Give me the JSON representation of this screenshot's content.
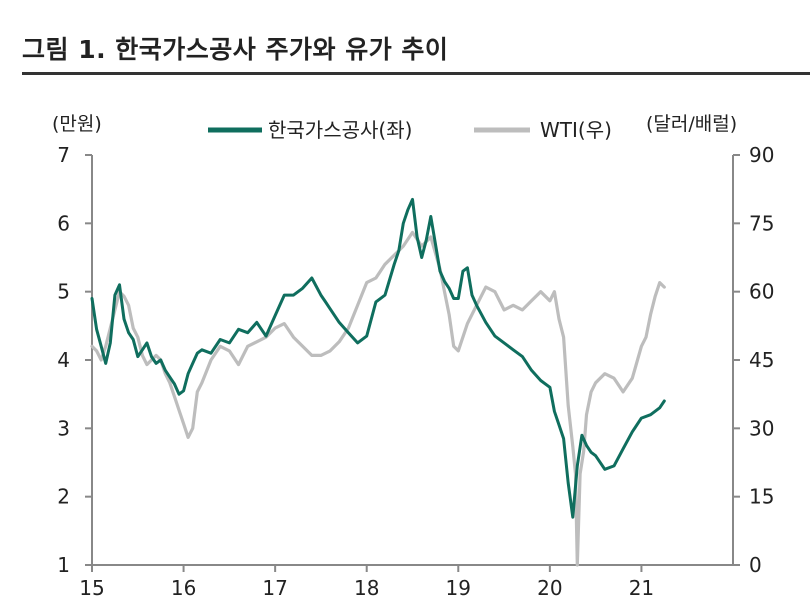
{
  "title": "그림 1. 한국가스공사 주가와 유가 추이",
  "chart_data": {
    "type": "line",
    "title": "그림 1. 한국가스공사 주가와 유가 추이",
    "left_unit": "(만원)",
    "right_unit": "(달러/배럴)",
    "x_ticks": [
      "15",
      "16",
      "17",
      "18",
      "19",
      "20",
      "21"
    ],
    "y_left_ticks": [
      "1",
      "2",
      "3",
      "4",
      "5",
      "6",
      "7"
    ],
    "y_right_ticks": [
      "0",
      "15",
      "30",
      "45",
      "60",
      "75",
      "90"
    ],
    "xlim": [
      2015.0,
      2022.0
    ],
    "ylim_left": [
      1,
      7
    ],
    "ylim_right": [
      0,
      90
    ],
    "legend_position": "top",
    "series": [
      {
        "name": "한국가스공사(좌)",
        "axis": "left",
        "color": "#0f6e5e",
        "x": [
          2015.0,
          2015.05,
          2015.1,
          2015.15,
          2015.2,
          2015.25,
          2015.3,
          2015.35,
          2015.4,
          2015.45,
          2015.5,
          2015.55,
          2015.6,
          2015.65,
          2015.7,
          2015.75,
          2015.8,
          2015.85,
          2015.9,
          2015.95,
          2016.0,
          2016.05,
          2016.1,
          2016.15,
          2016.2,
          2016.3,
          2016.4,
          2016.5,
          2016.6,
          2016.7,
          2016.8,
          2016.9,
          2017.0,
          2017.1,
          2017.2,
          2017.3,
          2017.4,
          2017.5,
          2017.55,
          2017.6,
          2017.7,
          2017.8,
          2017.9,
          2018.0,
          2018.1,
          2018.2,
          2018.3,
          2018.35,
          2018.4,
          2018.45,
          2018.5,
          2018.55,
          2018.6,
          2018.65,
          2018.7,
          2018.75,
          2018.8,
          2018.85,
          2018.9,
          2018.95,
          2019.0,
          2019.05,
          2019.1,
          2019.15,
          2019.2,
          2019.3,
          2019.4,
          2019.5,
          2019.6,
          2019.7,
          2019.8,
          2019.9,
          2020.0,
          2020.05,
          2020.1,
          2020.15,
          2020.2,
          2020.25,
          2020.3,
          2020.35,
          2020.4,
          2020.45,
          2020.5,
          2020.6,
          2020.7,
          2020.8,
          2020.9,
          2021.0,
          2021.1,
          2021.2,
          2021.25
        ],
        "values": [
          4.9,
          4.45,
          4.2,
          3.95,
          4.25,
          4.95,
          5.1,
          4.6,
          4.4,
          4.3,
          4.05,
          4.15,
          4.25,
          4.05,
          3.95,
          4.0,
          3.85,
          3.75,
          3.65,
          3.5,
          3.55,
          3.8,
          3.95,
          4.1,
          4.15,
          4.1,
          4.3,
          4.25,
          4.45,
          4.4,
          4.55,
          4.35,
          4.65,
          4.95,
          4.95,
          5.05,
          5.2,
          4.95,
          4.85,
          4.75,
          4.55,
          4.4,
          4.25,
          4.35,
          4.85,
          4.95,
          5.4,
          5.6,
          6.0,
          6.2,
          6.35,
          5.8,
          5.5,
          5.75,
          6.1,
          5.7,
          5.3,
          5.15,
          5.05,
          4.9,
          4.9,
          5.3,
          5.35,
          4.95,
          4.8,
          4.55,
          4.35,
          4.25,
          4.15,
          4.05,
          3.85,
          3.7,
          3.6,
          3.25,
          3.05,
          2.85,
          2.2,
          1.7,
          2.45,
          2.9,
          2.75,
          2.65,
          2.6,
          2.4,
          2.45,
          2.7,
          2.95,
          3.15,
          3.2,
          3.3,
          3.4
        ]
      },
      {
        "name": "WTI(우)",
        "axis": "right",
        "color": "#bdbdbd",
        "x": [
          2015.0,
          2015.05,
          2015.1,
          2015.15,
          2015.2,
          2015.25,
          2015.3,
          2015.35,
          2015.4,
          2015.45,
          2015.5,
          2015.55,
          2015.6,
          2015.65,
          2015.7,
          2015.75,
          2015.8,
          2015.85,
          2015.9,
          2015.95,
          2016.0,
          2016.05,
          2016.1,
          2016.15,
          2016.2,
          2016.3,
          2016.4,
          2016.5,
          2016.6,
          2016.7,
          2016.8,
          2016.9,
          2017.0,
          2017.1,
          2017.2,
          2017.3,
          2017.4,
          2017.5,
          2017.6,
          2017.7,
          2017.8,
          2017.9,
          2018.0,
          2018.1,
          2018.2,
          2018.3,
          2018.4,
          2018.5,
          2018.6,
          2018.7,
          2018.8,
          2018.85,
          2018.9,
          2018.95,
          2019.0,
          2019.1,
          2019.2,
          2019.3,
          2019.4,
          2019.5,
          2019.6,
          2019.7,
          2019.8,
          2019.9,
          2020.0,
          2020.05,
          2020.1,
          2020.15,
          2020.2,
          2020.25,
          2020.28,
          2020.3,
          2020.33,
          2020.37,
          2020.4,
          2020.45,
          2020.5,
          2020.6,
          2020.7,
          2020.8,
          2020.9,
          2021.0,
          2021.05,
          2021.1,
          2021.15,
          2021.2,
          2021.25
        ],
        "values": [
          48,
          47,
          45,
          48,
          52,
          56,
          60,
          59,
          57,
          52,
          50,
          46,
          44,
          45,
          46,
          45,
          42,
          40,
          37,
          34,
          31,
          28,
          30,
          38,
          40,
          45,
          48,
          47,
          44,
          48,
          49,
          50,
          52,
          53,
          50,
          48,
          46,
          46,
          47,
          49,
          52,
          57,
          62,
          63,
          66,
          68,
          70,
          73,
          70,
          72,
          65,
          60,
          55,
          48,
          47,
          53,
          57,
          61,
          60,
          56,
          57,
          56,
          58,
          60,
          58,
          60,
          54,
          50,
          35,
          26,
          20,
          0,
          20,
          25,
          33,
          38,
          40,
          42,
          41,
          38,
          41,
          48,
          50,
          55,
          59,
          62,
          61
        ]
      }
    ]
  }
}
